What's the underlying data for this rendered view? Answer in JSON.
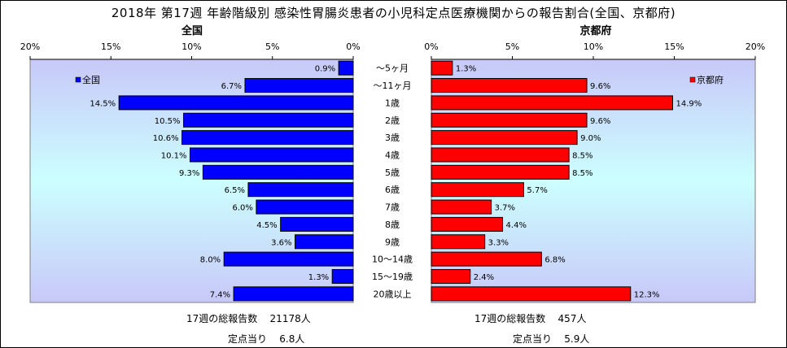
{
  "title": "2018年 第17週 年齢階級別 感染性胃腸炎患者の小児科定点医療機関からの報告割合(全国、京都府)",
  "chart_data": [
    {
      "type": "bar",
      "panel": "left",
      "title": "全国",
      "orientation": "horizontal-reversed",
      "xlim": [
        0,
        20
      ],
      "x_ticks": [
        "20%",
        "15%",
        "10%",
        "5%",
        "0%"
      ],
      "grid": false,
      "legend_position": "top-left",
      "categories": [
        "～5ヶ月",
        "～11ヶ月",
        "1歳",
        "2歳",
        "3歳",
        "4歳",
        "5歳",
        "6歳",
        "7歳",
        "8歳",
        "9歳",
        "10～14歳",
        "15～19歳",
        "20歳以上"
      ],
      "series": [
        {
          "name": "全国",
          "color": "#0000ff",
          "values": [
            0.9,
            6.7,
            14.5,
            10.5,
            10.6,
            10.1,
            9.3,
            6.5,
            6.0,
            4.5,
            3.6,
            8.0,
            1.3,
            7.4
          ],
          "labels": [
            "0.9%",
            "6.7%",
            "14.5%",
            "10.5%",
            "10.6%",
            "10.1%",
            "9.3%",
            "6.5%",
            "6.0%",
            "4.5%",
            "3.6%",
            "8.0%",
            "1.3%",
            "7.4%"
          ]
        }
      ]
    },
    {
      "type": "bar",
      "panel": "right",
      "title": "京都府",
      "orientation": "horizontal",
      "xlim": [
        0,
        20
      ],
      "x_ticks": [
        "0%",
        "5%",
        "10%",
        "15%",
        "20%"
      ],
      "grid": false,
      "legend_position": "top-right",
      "categories": [
        "～5ヶ月",
        "～11ヶ月",
        "1歳",
        "2歳",
        "3歳",
        "4歳",
        "5歳",
        "6歳",
        "7歳",
        "8歳",
        "9歳",
        "10～14歳",
        "15～19歳",
        "20歳以上"
      ],
      "series": [
        {
          "name": "京都府",
          "color": "#ff0000",
          "values": [
            1.3,
            9.6,
            14.9,
            9.6,
            9.0,
            8.5,
            8.5,
            5.7,
            3.7,
            4.4,
            3.3,
            6.8,
            2.4,
            12.3
          ],
          "labels": [
            "1.3%",
            "9.6%",
            "14.9%",
            "9.6%",
            "9.0%",
            "8.5%",
            "8.5%",
            "5.7%",
            "3.7%",
            "4.4%",
            "3.3%",
            "6.8%",
            "2.4%",
            "12.3%"
          ]
        }
      ]
    }
  ],
  "footer": {
    "left": {
      "total_label": "17週の総報告数",
      "total_value": "21178人",
      "per_label": "定点当り",
      "per_value": "6.8人"
    },
    "right": {
      "total_label": "17週の総報告数",
      "total_value": "457人",
      "per_label": "定点当り",
      "per_value": "5.9人"
    }
  },
  "colors": {
    "plot_top": "#c8c8f8",
    "plot_mid": "#ccffff",
    "left_bar": "#0000ff",
    "right_bar": "#ff0000"
  }
}
